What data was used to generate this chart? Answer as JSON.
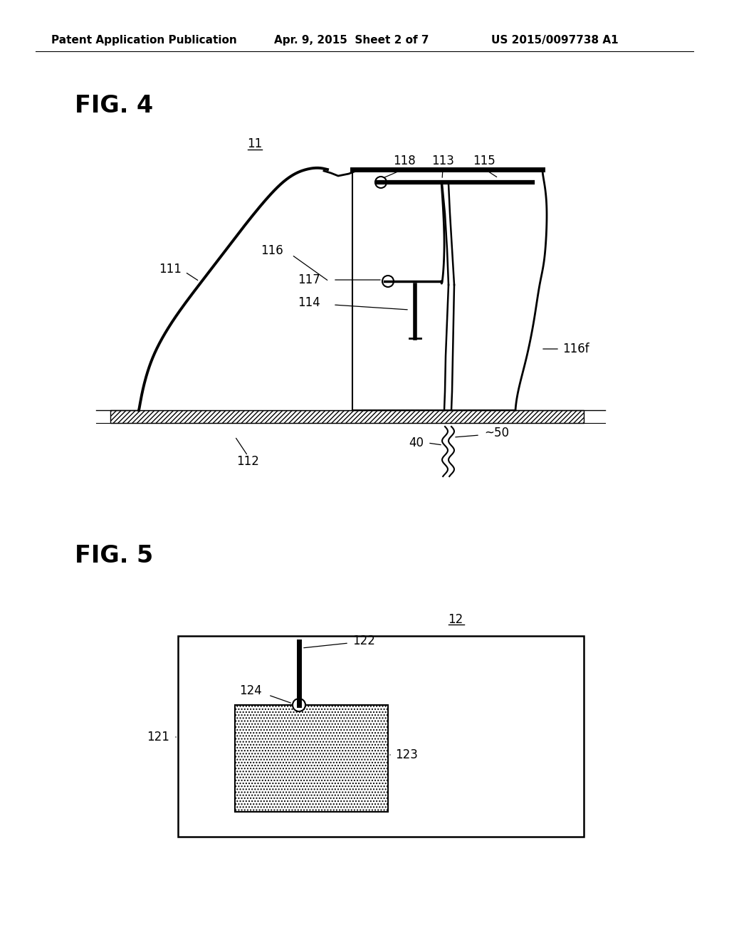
{
  "bg_color": "#ffffff",
  "header_text1": "Patent Application Publication",
  "header_text2": "Apr. 9, 2015  Sheet 2 of 7",
  "header_text3": "US 2015/0097738 A1",
  "fig4_label": "FIG. 4",
  "fig5_label": "FIG. 5",
  "fig4_ref": "11",
  "fig5_ref": "12",
  "line_color": "#000000",
  "label_fontsize": 12,
  "header_fontsize": 11,
  "fig_label_fontsize": 24,
  "dot_fill_color": "#cccccc"
}
